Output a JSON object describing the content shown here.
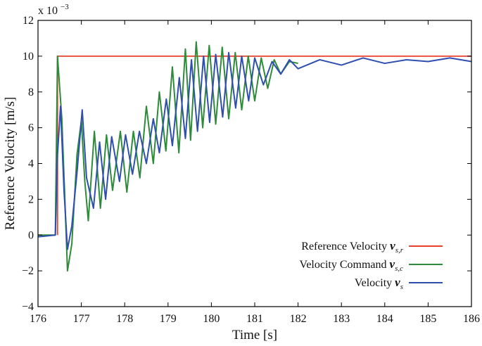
{
  "chart_data": {
    "type": "line",
    "xlabel": "Time [s]",
    "ylabel": "Reference Velocity [m/s]",
    "y_scale_label": "x 10",
    "y_scale_exponent": "−3",
    "xlim": [
      176,
      186
    ],
    "ylim": [
      -4,
      12
    ],
    "xticks": [
      "176",
      "177",
      "178",
      "179",
      "180",
      "181",
      "182",
      "183",
      "184",
      "185",
      "186"
    ],
    "yticks": [
      "−4",
      "−2",
      "0",
      "2",
      "4",
      "6",
      "8",
      "10",
      "12"
    ],
    "grid": false,
    "legend_position": "bottom-right",
    "series": [
      {
        "name": "Reference Velocity",
        "symbol": "v",
        "subscript": "s,r",
        "color": "#e8402c",
        "x": [
          176.45,
          176.45,
          186
        ],
        "y": [
          0,
          10,
          10
        ]
      },
      {
        "name": "Velocity Command",
        "symbol": "v",
        "subscript": "s,c",
        "color": "#2e8b3a",
        "x": [
          176.0,
          176.4,
          176.45,
          176.55,
          176.62,
          176.68,
          176.78,
          176.9,
          177.0,
          177.08,
          177.16,
          177.3,
          177.44,
          177.58,
          177.72,
          177.9,
          178.05,
          178.2,
          178.35,
          178.5,
          178.66,
          178.8,
          178.95,
          179.1,
          179.25,
          179.4,
          179.52,
          179.65,
          179.8,
          179.95,
          180.1,
          180.25,
          180.4,
          180.55,
          180.7,
          180.85,
          181.0,
          181.15,
          181.3,
          181.45,
          181.6,
          181.8,
          182.0
        ],
        "y": [
          0,
          0,
          10,
          6.5,
          2.0,
          -2.0,
          -0.5,
          4.5,
          6.4,
          3.0,
          0.8,
          5.8,
          1.5,
          5.6,
          2.5,
          5.8,
          2.4,
          5.8,
          3.2,
          7.2,
          4.0,
          8.0,
          4.7,
          9.4,
          4.6,
          10.4,
          5.3,
          10.8,
          6.0,
          10.6,
          6.2,
          10.5,
          6.5,
          10.2,
          7.0,
          10.0,
          7.5,
          9.9,
          8.2,
          9.8,
          9.0,
          9.7,
          9.6
        ]
      },
      {
        "name": "Velocity",
        "symbol": "v",
        "subscript": "s",
        "color": "#2f4fb0",
        "x": [
          176.0,
          176.4,
          176.45,
          176.52,
          176.6,
          176.68,
          176.78,
          176.9,
          177.02,
          177.12,
          177.28,
          177.42,
          177.56,
          177.7,
          177.88,
          178.02,
          178.18,
          178.34,
          178.5,
          178.66,
          178.8,
          178.96,
          179.1,
          179.26,
          179.4,
          179.54,
          179.68,
          179.82,
          179.96,
          180.1,
          180.26,
          180.4,
          180.56,
          180.7,
          180.86,
          181.0,
          181.2,
          181.4,
          181.6,
          181.8,
          182.0,
          182.5,
          183.0,
          183.5,
          184.0,
          184.5,
          185.0,
          185.5,
          186.0
        ],
        "y": [
          -0.1,
          0.0,
          4.5,
          7.2,
          2.5,
          -0.8,
          0.5,
          3.5,
          7.0,
          3.2,
          1.5,
          5.2,
          2.0,
          5.5,
          3.0,
          5.6,
          3.4,
          5.8,
          4.0,
          6.5,
          4.6,
          7.6,
          5.0,
          8.8,
          5.4,
          9.8,
          5.8,
          10.0,
          6.3,
          10.1,
          6.6,
          10.2,
          7.1,
          10.0,
          7.5,
          9.9,
          8.4,
          9.7,
          9.0,
          9.8,
          9.3,
          9.8,
          9.5,
          9.9,
          9.6,
          9.8,
          9.7,
          9.9,
          9.7
        ]
      }
    ]
  }
}
